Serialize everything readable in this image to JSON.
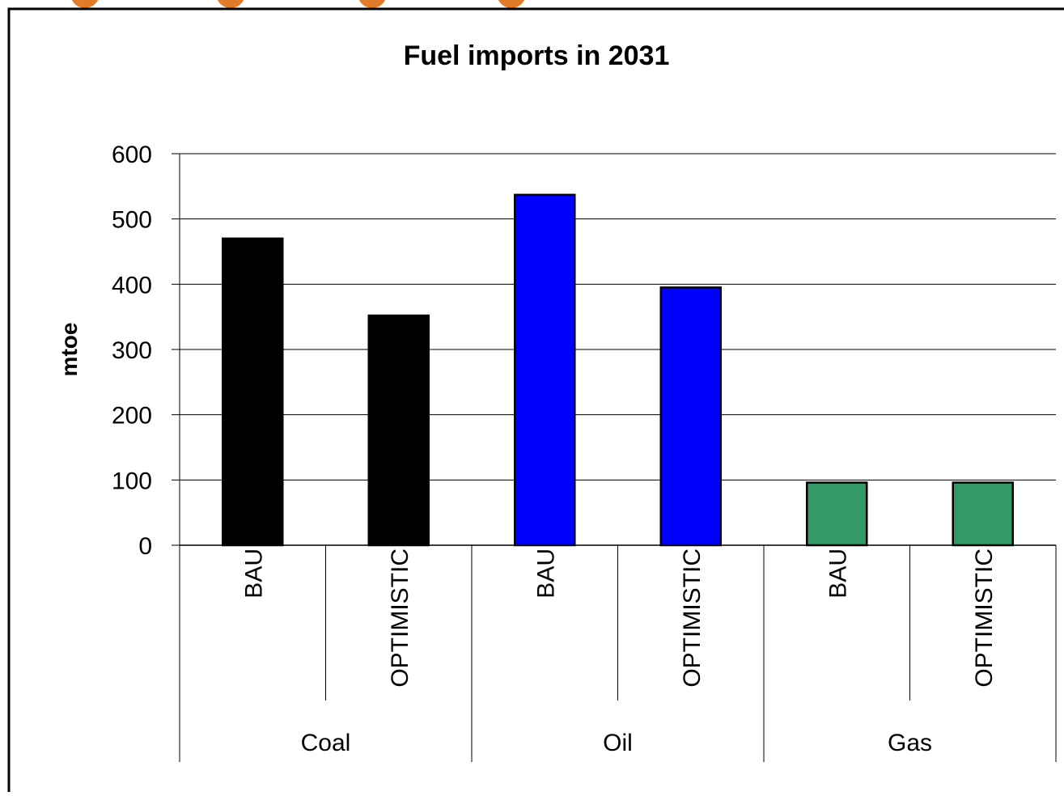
{
  "chart_data": {
    "type": "bar",
    "title": "Fuel imports in 2031",
    "ylabel": "mtoe",
    "xlabel": "",
    "ylim": [
      0,
      600
    ],
    "yticks": [
      0,
      100,
      200,
      300,
      400,
      500,
      600
    ],
    "grid": true,
    "legend": "none",
    "groups": [
      {
        "name": "Coal",
        "color": "#000000",
        "bars": [
          {
            "label": "BAU",
            "value": 470
          },
          {
            "label": "OPTIMISTIC",
            "value": 352
          }
        ]
      },
      {
        "name": "Oil",
        "color": "#0000ff",
        "bars": [
          {
            "label": "BAU",
            "value": 537
          },
          {
            "label": "OPTIMISTIC",
            "value": 395
          }
        ]
      },
      {
        "name": "Gas",
        "color": "#339966",
        "bars": [
          {
            "label": "BAU",
            "value": 96
          },
          {
            "label": "OPTIMISTIC",
            "value": 96
          }
        ]
      }
    ],
    "colors": {
      "frame": "#000000",
      "grid": "#000000",
      "decor": "#e07b2a"
    }
  }
}
